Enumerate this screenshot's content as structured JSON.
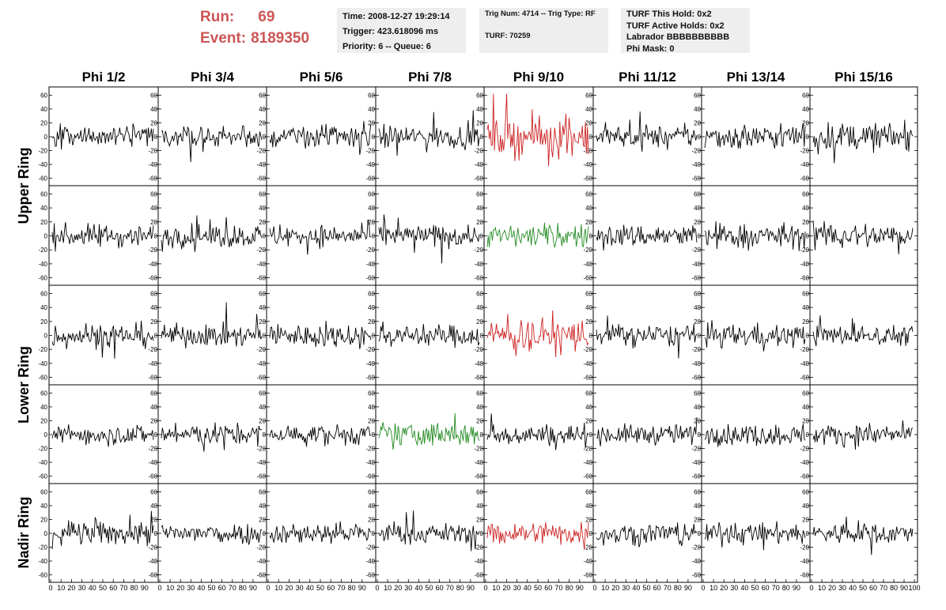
{
  "header": {
    "run_label": "Run:",
    "run_value": "69",
    "event_label": "Event:",
    "event_value": "8189350",
    "box1": [
      "Time: 2008-12-27 19:29:14",
      "Trigger: 423.618096 ms",
      "Priority: 6 -- Queue: 6"
    ],
    "box2": [
      "Trig Num: 4714 -- Trig Type: RF",
      "TURF: 70259"
    ],
    "box3": [
      "TURF This Hold: 0x2",
      "TURF Active Holds: 0x2",
      "Labrador BBBBBBBBBB",
      "Phi Mask: 0"
    ]
  },
  "colors": {
    "accent_text": "#cc5555",
    "normal": "#000000",
    "triggered": "#cc2222",
    "green": "#228B22"
  },
  "chart_data": {
    "type": "line",
    "columns": [
      "Phi 1/2",
      "Phi 3/4",
      "Phi 5/6",
      "Phi 7/8",
      "Phi 9/10",
      "Phi 11/12",
      "Phi 13/14",
      "Phi 15/16"
    ],
    "ring_labels": [
      "Upper Ring",
      "Lower Ring",
      "Nadir Ring"
    ],
    "ylim": [
      -65,
      65
    ],
    "yticks": [
      "60",
      "40",
      "20",
      "0",
      "-20",
      "-40",
      "-60"
    ],
    "xlim": [
      0,
      100
    ],
    "xticks": [
      "0",
      "10",
      "20",
      "30",
      "40",
      "50",
      "60",
      "70",
      "80",
      "90",
      "100"
    ],
    "samples_per_trace": 100,
    "trace_colors": [
      [
        "normal",
        "normal",
        "normal",
        "normal",
        "triggered",
        "normal",
        "normal",
        "normal"
      ],
      [
        "normal",
        "normal",
        "normal",
        "normal",
        "green",
        "normal",
        "normal",
        "normal"
      ],
      [
        "normal",
        "normal",
        "normal",
        "normal",
        "triggered",
        "normal",
        "normal",
        "normal"
      ],
      [
        "normal",
        "normal",
        "normal",
        "green",
        "normal",
        "normal",
        "normal",
        "normal"
      ],
      [
        "normal",
        "normal",
        "normal",
        "normal",
        "triggered",
        "normal",
        "normal",
        "normal"
      ]
    ],
    "trace_amplitudes": [
      [
        16,
        14,
        16,
        15,
        26,
        14,
        17,
        18
      ],
      [
        15,
        15,
        14,
        14,
        15,
        15,
        16,
        17
      ],
      [
        16,
        14,
        15,
        14,
        22,
        14,
        15,
        13
      ],
      [
        13,
        14,
        13,
        16,
        14,
        13,
        14,
        14
      ],
      [
        16,
        14,
        14,
        13,
        15,
        15,
        14,
        14
      ]
    ]
  }
}
